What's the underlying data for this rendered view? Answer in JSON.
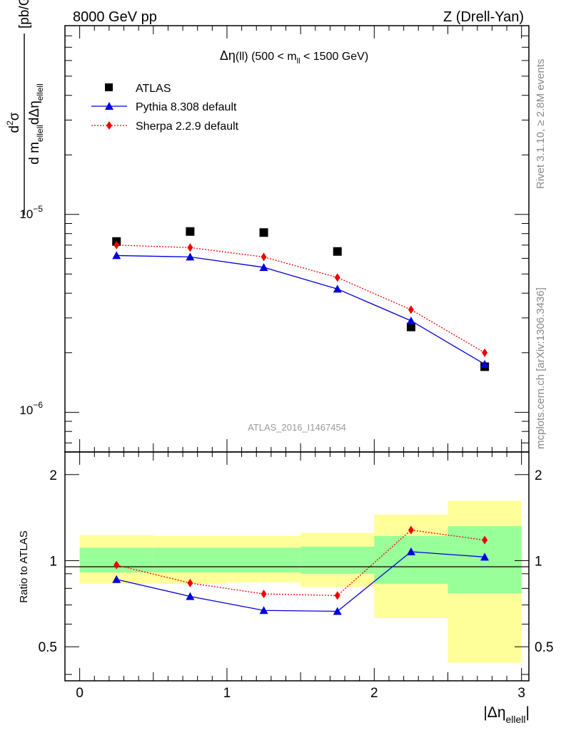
{
  "header": {
    "left": "8000 GeV pp",
    "right": "Z (Drell-Yan)"
  },
  "side": {
    "top": "Rivet 3.1.10, ≥ 2.8M events",
    "bottom": "mcplots.cern.ch [arXiv:1306.3436]"
  },
  "analysis_label": "ATLAS_2016_I1467454",
  "chart_data": [
    {
      "type": "scatter",
      "panel": "main",
      "title": "Δη(ll) (500 < m_ll < 1500 GeV)",
      "xlabel": "|Δη_ellell|",
      "ylabel": "d²σ / d m_ellell dΔη_ellell [pb/GeV]",
      "xlim": [
        -0.1,
        3.05
      ],
      "ylim": [
        6.3e-07,
        9e-05
      ],
      "yscale": "log",
      "ytick_labels": [
        "10^-6",
        "10^-5"
      ],
      "legend": "top-left",
      "x": [
        0.25,
        0.75,
        1.25,
        1.75,
        2.25,
        2.75
      ],
      "series": [
        {
          "name": "ATLAS",
          "marker": "square",
          "color": "#000000",
          "line": "none",
          "values": [
            7.3e-06,
            8.2e-06,
            8.1e-06,
            6.5e-06,
            2.7e-06,
            1.7e-06
          ]
        },
        {
          "name": "Pythia 8.308 default",
          "marker": "triangle",
          "color": "#0000dd",
          "line": "solid",
          "values": [
            6.2e-06,
            6.1e-06,
            5.4e-06,
            4.2e-06,
            2.9e-06,
            1.75e-06
          ]
        },
        {
          "name": "Sherpa 2.2.9 default",
          "marker": "diamond",
          "color": "#ee0000",
          "line": "dotted",
          "values": [
            7e-06,
            6.8e-06,
            6.1e-06,
            4.8e-06,
            3.3e-06,
            2e-06
          ]
        }
      ]
    },
    {
      "type": "line",
      "panel": "ratio",
      "xlabel": "|Δη_ellell|",
      "ylabel": "Ratio to ATLAS",
      "xlim": [
        -0.1,
        3.05
      ],
      "ylim": [
        0.38,
        2.4
      ],
      "yscale": "log",
      "ytick_labels": [
        "0.5",
        "1",
        "2"
      ],
      "xtick_labels": [
        "0",
        "1",
        "2",
        "3"
      ],
      "bins": [
        [
          0,
          0.5
        ],
        [
          0.5,
          1.0
        ],
        [
          1.0,
          1.5
        ],
        [
          1.5,
          2.0
        ],
        [
          2.0,
          2.5
        ],
        [
          2.5,
          3.0
        ]
      ],
      "bands": {
        "inner": {
          "color": "#99ff99",
          "lo": [
            0.91,
            0.91,
            0.91,
            0.9,
            0.83,
            0.77
          ],
          "hi": [
            1.11,
            1.11,
            1.11,
            1.12,
            1.22,
            1.32
          ]
        },
        "outer": {
          "color": "#ffff99",
          "lo": [
            0.83,
            0.83,
            0.84,
            0.81,
            0.63,
            0.44
          ],
          "hi": [
            1.23,
            1.22,
            1.22,
            1.25,
            1.45,
            1.62
          ]
        }
      },
      "x": [
        0.25,
        0.75,
        1.25,
        1.75,
        2.25,
        2.75
      ],
      "series": [
        {
          "name": "Pythia 8.308 default",
          "marker": "triangle",
          "color": "#0000dd",
          "line": "solid",
          "values": [
            0.86,
            0.75,
            0.67,
            0.665,
            1.075,
            1.03
          ]
        },
        {
          "name": "Sherpa 2.2.9 default",
          "marker": "diamond",
          "color": "#ee0000",
          "line": "dotted",
          "values": [
            0.965,
            0.835,
            0.765,
            0.755,
            1.28,
            1.18
          ]
        }
      ]
    }
  ]
}
